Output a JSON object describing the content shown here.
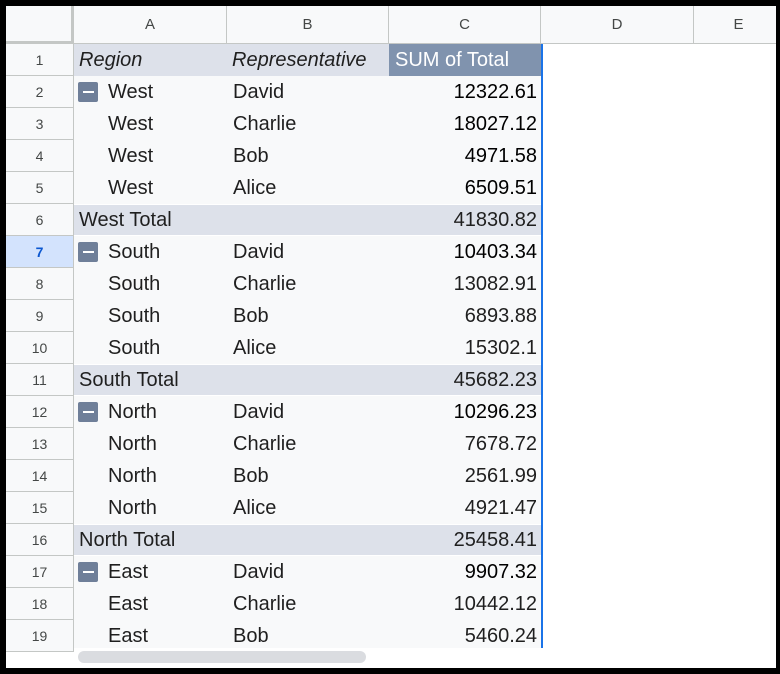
{
  "columns": [
    "A",
    "B",
    "C",
    "D",
    "E"
  ],
  "row_numbers": [
    "1",
    "2",
    "3",
    "4",
    "5",
    "6",
    "7",
    "8",
    "9",
    "10",
    "11",
    "12",
    "13",
    "14",
    "15",
    "16",
    "17",
    "18",
    "19"
  ],
  "selected_row": "7",
  "pivot_header": {
    "region": "Region",
    "representative": "Representative",
    "sum": "SUM of Total"
  },
  "rows": [
    {
      "kind": "group",
      "region": "West",
      "rep": "David",
      "value": "12322.61"
    },
    {
      "kind": "item",
      "region": "West",
      "rep": "Charlie",
      "value": "18027.12"
    },
    {
      "kind": "item",
      "region": "West",
      "rep": "Bob",
      "value": "4971.58"
    },
    {
      "kind": "item",
      "region": "West",
      "rep": "Alice",
      "value": "6509.51"
    },
    {
      "kind": "total",
      "region": "West Total",
      "rep": "",
      "value": "41830.82"
    },
    {
      "kind": "group",
      "region": "South",
      "rep": "David",
      "value": "10403.34"
    },
    {
      "kind": "item",
      "region": "South",
      "rep": "Charlie",
      "value": "13082.91"
    },
    {
      "kind": "item",
      "region": "South",
      "rep": "Bob",
      "value": "6893.88"
    },
    {
      "kind": "item",
      "region": "South",
      "rep": "Alice",
      "value": "15302.1"
    },
    {
      "kind": "total",
      "region": "South Total",
      "rep": "",
      "value": "45682.23"
    },
    {
      "kind": "group",
      "region": "North",
      "rep": "David",
      "value": "10296.23"
    },
    {
      "kind": "item",
      "region": "North",
      "rep": "Charlie",
      "value": "7678.72"
    },
    {
      "kind": "item",
      "region": "North",
      "rep": "Bob",
      "value": "2561.99"
    },
    {
      "kind": "item",
      "region": "North",
      "rep": "Alice",
      "value": "4921.47"
    },
    {
      "kind": "total",
      "region": "North Total",
      "rep": "",
      "value": "25458.41"
    },
    {
      "kind": "group",
      "region": "East",
      "rep": "David",
      "value": "9907.32"
    },
    {
      "kind": "item",
      "region": "East",
      "rep": "Charlie",
      "value": "10442.12"
    },
    {
      "kind": "item",
      "region": "East",
      "rep": "Bob",
      "value": "5460.24"
    }
  ],
  "colors": {
    "pivot_header_bg": "#dde1ea",
    "sum_header_bg": "#8093ae",
    "selection": "#1a73e8",
    "toggle": "#6f7f99"
  },
  "icons": {
    "collapse": "minus-icon"
  }
}
